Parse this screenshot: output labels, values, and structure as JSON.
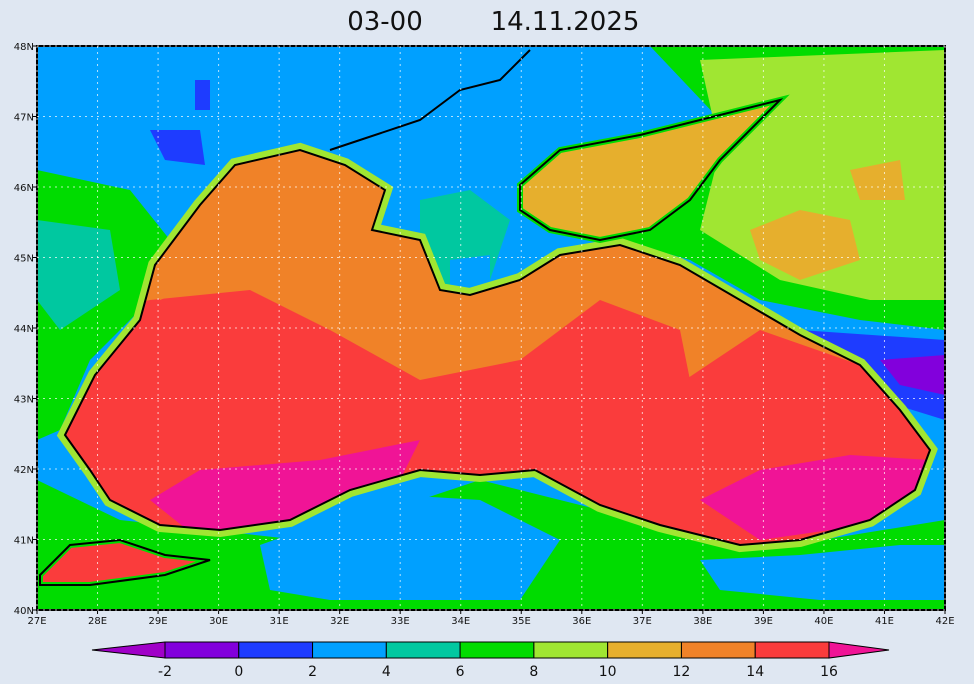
{
  "header": {
    "time": "03-00",
    "date": "14.11.2025"
  },
  "map": {
    "xlim": [
      27,
      42
    ],
    "xticks": [
      {
        "value": 27,
        "label": "27E"
      },
      {
        "value": 28,
        "label": "28E"
      },
      {
        "value": 29,
        "label": "29E"
      },
      {
        "value": 30,
        "label": "30E"
      },
      {
        "value": 31,
        "label": "31E"
      },
      {
        "value": 32,
        "label": "32E"
      },
      {
        "value": 33,
        "label": "33E"
      },
      {
        "value": 34,
        "label": "34E"
      },
      {
        "value": 35,
        "label": "35E"
      },
      {
        "value": 36,
        "label": "36E"
      },
      {
        "value": 37,
        "label": "37E"
      },
      {
        "value": 38,
        "label": "38E"
      },
      {
        "value": 39,
        "label": "39E"
      },
      {
        "value": 40,
        "label": "40E"
      },
      {
        "value": 41,
        "label": "41E"
      },
      {
        "value": 42,
        "label": "42E"
      }
    ],
    "ylim": [
      40,
      48
    ],
    "yticks": [
      {
        "value": 40,
        "label": "40N"
      },
      {
        "value": 41,
        "label": "41N"
      },
      {
        "value": 42,
        "label": "42N"
      },
      {
        "value": 43,
        "label": "43N"
      },
      {
        "value": 44,
        "label": "44N"
      },
      {
        "value": 45,
        "label": "45N"
      },
      {
        "value": 46,
        "label": "46N"
      },
      {
        "value": 47,
        "label": "47N"
      },
      {
        "value": 48,
        "label": "48N"
      }
    ],
    "grid": true
  },
  "colorbar": {
    "levels": [
      -2,
      0,
      2,
      4,
      6,
      8,
      10,
      12,
      14,
      16
    ],
    "colors": [
      "#a000c8",
      "#8200dc",
      "#1e3cff",
      "#00a0ff",
      "#00c8a0",
      "#00dc00",
      "#a0e632",
      "#e6af2d",
      "#f08228",
      "#fa3c3c",
      "#f01496"
    ]
  }
}
